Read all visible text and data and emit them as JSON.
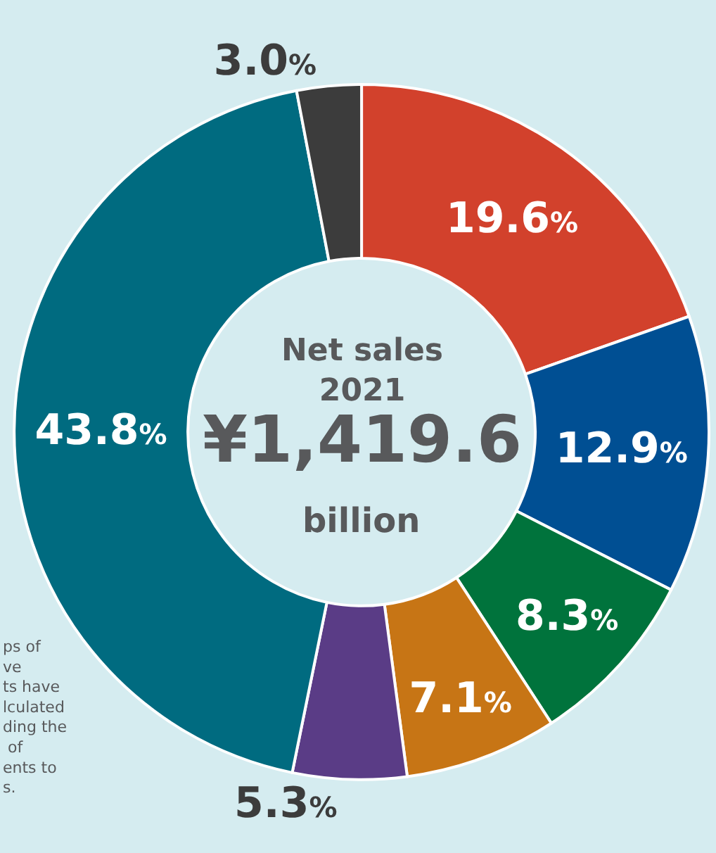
{
  "chart_data": {
    "type": "donut",
    "categories": [
      null,
      null,
      null,
      null,
      null,
      null,
      null
    ],
    "values": [
      19.6,
      12.9,
      8.3,
      7.1,
      5.3,
      43.8,
      3.0
    ],
    "colors": [
      "#d2412c",
      "#004f93",
      "#00733c",
      "#c77515",
      "#5a3c86",
      "#006b80",
      "#3c3c3c"
    ],
    "value_labels": [
      "19.6%",
      "12.9%",
      "8.3%",
      "7.1%",
      "5.3%",
      "43.8%",
      "3.0%"
    ],
    "annotations": [
      "Net sales\n2021",
      "¥1,419.6",
      "billion",
      "ps of\nve\nts have\nlculated\nding the\n of\nents to\ns."
    ]
  }
}
